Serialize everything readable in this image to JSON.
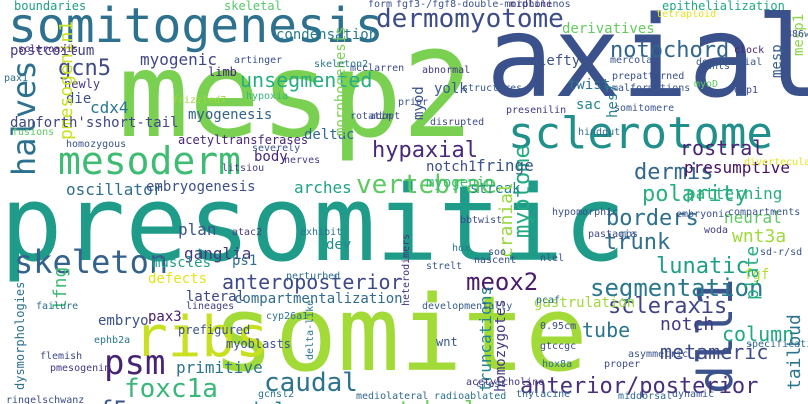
{
  "words": [
    {
      "text": "presomitic",
      "color": "#1e9c89"
    },
    {
      "text": "somite",
      "color": "#a2da37"
    },
    {
      "text": "mesp2",
      "color": "#7ad151"
    },
    {
      "text": "axial",
      "color": "#3b518b"
    },
    {
      "text": "sclerotome",
      "color": "#21908d"
    },
    {
      "text": "somitogenesis",
      "color": "#2d718e"
    },
    {
      "text": "mesoderm",
      "color": "#3fbc73"
    },
    {
      "text": "ribs",
      "color": "#c8e020"
    },
    {
      "text": "dermomyotome",
      "color": "#3d4d8a"
    },
    {
      "text": "skeleton",
      "color": "#33628d"
    },
    {
      "text": "halves",
      "color": "#2c728e"
    },
    {
      "text": "vertebrae",
      "color": "#5ec962"
    },
    {
      "text": "caudal",
      "color": "#2c738e"
    },
    {
      "text": "dll1",
      "color": "#3b528b"
    },
    {
      "text": "psm",
      "color": "#482374"
    },
    {
      "text": "foxc1a",
      "color": "#37b878"
    },
    {
      "text": "vertebral",
      "color": "#6ccd5a"
    },
    {
      "text": "segmentation",
      "color": "#2a788e"
    },
    {
      "text": "meox2",
      "color": "#481b6d"
    },
    {
      "text": "notochord",
      "color": "#32658e"
    },
    {
      "text": "unsegmented",
      "color": "#26ad81"
    },
    {
      "text": "hypaxial",
      "color": "#482979"
    },
    {
      "text": "dermis",
      "color": "#31668e"
    },
    {
      "text": "polarity",
      "color": "#2ab07f"
    },
    {
      "text": "borders",
      "color": "#2d708e"
    },
    {
      "text": "anteroposterior",
      "color": "#3e4989"
    },
    {
      "text": "anterior/posterior",
      "color": "#472f7d"
    },
    {
      "text": "myotome",
      "color": "#25ab82"
    },
    {
      "text": "trunk",
      "color": "#2e6f8e"
    },
    {
      "text": "lunatic",
      "color": "#1f9e89"
    },
    {
      "text": "scleraxis",
      "color": "#414487"
    },
    {
      "text": "column",
      "color": "#22a884"
    },
    {
      "text": "metameric",
      "color": "#3e4c8a"
    },
    {
      "text": "notch",
      "color": "#443a83"
    },
    {
      "text": "epaxial",
      "color": "#23898e"
    },
    {
      "text": "myf5",
      "color": "#3a548c"
    },
    {
      "text": "tube",
      "color": "#2a768e"
    },
    {
      "text": "plan",
      "color": "#3a538b"
    },
    {
      "text": "gcn5",
      "color": "#3e4a89"
    },
    {
      "text": "myogenic",
      "color": "#404688"
    },
    {
      "text": "rostral",
      "color": "#482475"
    },
    {
      "text": "primitive",
      "color": "#2b748e"
    },
    {
      "text": "postcoitum",
      "color": "#433e85"
    },
    {
      "text": "boundaries",
      "color": "#1fa088"
    },
    {
      "text": "condensation",
      "color": "#287c8e"
    },
    {
      "text": "skeletal",
      "color": "#56c667"
    },
    {
      "text": "epithelialization",
      "color": "#22a785"
    },
    {
      "text": "derivatives",
      "color": "#65cb5e"
    },
    {
      "text": "lefty",
      "color": "#3b528b"
    },
    {
      "text": "cdx4",
      "color": "#2a768e"
    },
    {
      "text": "myogenesis",
      "color": "#33638d"
    },
    {
      "text": "oscillator",
      "color": "#2e6e8e"
    },
    {
      "text": "embryogenesis",
      "color": "#3b518b"
    },
    {
      "text": "arches",
      "color": "#1fa188"
    },
    {
      "text": "fringe",
      "color": "#39558c"
    },
    {
      "text": "streak",
      "color": "#24868e"
    },
    {
      "text": "presumptive",
      "color": "#471164"
    },
    {
      "text": "patterning",
      "color": "#29af7f"
    },
    {
      "text": "neural",
      "color": "#5ec962"
    },
    {
      "text": "wnt3a",
      "color": "#9fda3a"
    },
    {
      "text": "fgf",
      "color": "#b5de2b"
    },
    {
      "text": "pax3",
      "color": "#481b6d"
    },
    {
      "text": "lateral",
      "color": "#3f4788"
    },
    {
      "text": "compartmentalization",
      "color": "#2f6c8e"
    },
    {
      "text": "embryo",
      "color": "#3b518b"
    },
    {
      "text": "ganglia",
      "color": "#453882"
    },
    {
      "text": "muscles",
      "color": "#1f9e89"
    },
    {
      "text": "defects",
      "color": "#e5e419"
    },
    {
      "text": "ps1",
      "color": "#2d708e"
    },
    {
      "text": "dev",
      "color": "#228d8d"
    },
    {
      "text": "body",
      "color": "#482878"
    },
    {
      "text": "deltac",
      "color": "#31688e"
    },
    {
      "text": "notch1",
      "color": "#3d4e8a"
    },
    {
      "text": "myod",
      "color": "#3b518b"
    },
    {
      "text": "myogenin",
      "color": "#3ebc74"
    },
    {
      "text": "twist",
      "color": "#2a768e"
    },
    {
      "text": "sac",
      "color": "#25858e"
    },
    {
      "text": "hes7",
      "color": "#25838e"
    },
    {
      "text": "die",
      "color": "#3b528b"
    },
    {
      "text": "newly",
      "color": "#443b84"
    },
    {
      "text": "pmesogenin1",
      "color": "#cae11f"
    },
    {
      "text": "lfng",
      "color": "#3dbc74"
    },
    {
      "text": "danforth'sshort-tail",
      "color": "#404688"
    },
    {
      "text": "acetyltransferases",
      "color": "#482575"
    },
    {
      "text": "cranial",
      "color": "#98d83e"
    },
    {
      "text": "plate",
      "color": "#25ac82"
    },
    {
      "text": "homozygotes",
      "color": "#453781"
    },
    {
      "text": "truncations",
      "color": "#25848e"
    },
    {
      "text": "tailbud",
      "color": "#2b758e"
    },
    {
      "text": "morphogenesis",
      "color": "#7ad151"
    },
    {
      "text": "yolk",
      "color": "#38598c"
    },
    {
      "text": "limb",
      "color": "#482374"
    },
    {
      "text": "mesp",
      "color": "#365d8d"
    },
    {
      "text": "mesp1",
      "color": "#8bd646"
    },
    {
      "text": "wnt",
      "color": "#39568c"
    },
    {
      "text": "gastrulation",
      "color": "#9dd93b"
    },
    {
      "text": "dysmorphologies",
      "color": "#2c718e"
    },
    {
      "text": "myoblasts",
      "color": "#3b518b"
    },
    {
      "text": "delta-like",
      "color": "#2a788e"
    },
    {
      "text": "crest",
      "color": "#3b518b"
    },
    {
      "text": "gcnsl2",
      "color": "#2c728e"
    },
    {
      "text": "mediolateral",
      "color": "#31678e"
    },
    {
      "text": "radioablated",
      "color": "#2c718e"
    },
    {
      "text": "middorsal",
      "color": "#2f6c8e"
    },
    {
      "text": "dynamic",
      "color": "#39568c"
    },
    {
      "text": "ringelschwanz",
      "color": "#3d4e8a"
    },
    {
      "text": "pmesogenin",
      "color": "#453882"
    },
    {
      "text": "flemish",
      "color": "#3f4889"
    },
    {
      "text": "ephb2a",
      "color": "#2b758e"
    },
    {
      "text": "failure",
      "color": "#2e6e8e"
    },
    {
      "text": "prefigured",
      "color": "#3b528b"
    },
    {
      "text": "lineages",
      "color": "#424086"
    },
    {
      "text": "perturbed",
      "color": "#2d708e"
    },
    {
      "text": "atac2",
      "color": "#433d84"
    },
    {
      "text": "nascent",
      "color": "#3b518b"
    },
    {
      "text": "proper",
      "color": "#3e4a89"
    },
    {
      "text": "asymmetric",
      "color": "#3b518b"
    },
    {
      "text": "developmentally",
      "color": "#38598c"
    },
    {
      "text": "heterodimers",
      "color": "#46327e"
    },
    {
      "text": "hox",
      "color": "#2a768e"
    },
    {
      "text": "pcaf",
      "color": "#31688e"
    },
    {
      "text": "homozygous",
      "color": "#3b528b"
    },
    {
      "text": "scleroaxis",
      "color": "#482475"
    },
    {
      "text": "mcclarren",
      "color": "#3e4c8a"
    },
    {
      "text": "artinger",
      "color": "#3b518b"
    },
    {
      "text": "hypoxia",
      "color": "#35b779"
    },
    {
      "text": "frizzled7",
      "color": "#9fda3a"
    },
    {
      "text": "skeleton2",
      "color": "#2a768e"
    },
    {
      "text": "mercola",
      "color": "#3b528b"
    },
    {
      "text": "dorsomedial",
      "color": "#38598c"
    },
    {
      "text": "myoD",
      "color": "#5ec962"
    },
    {
      "text": "eip1",
      "color": "#3e4c8a"
    },
    {
      "text": "clock",
      "color": "#482576"
    },
    {
      "text": "wnts",
      "color": "#38598c"
    },
    {
      "text": "presenilin",
      "color": "#453882"
    },
    {
      "text": "hindgut",
      "color": "#2e6e8e"
    },
    {
      "text": "divertecula",
      "color": "#e5e419"
    },
    {
      "text": "woda",
      "color": "#433e85"
    },
    {
      "text": "compartments",
      "color": "#39568c"
    },
    {
      "text": "sd-r/sd",
      "color": "#3b518b"
    },
    {
      "text": "embryonic",
      "color": "#3b528b"
    },
    {
      "text": "specification",
      "color": "#31688e"
    },
    {
      "text": "fusions",
      "color": "#5ec962"
    },
    {
      "text": "rotatin",
      "color": "#3b518b"
    },
    {
      "text": "adopt",
      "color": "#3e4c8a"
    },
    {
      "text": "nerves",
      "color": "#443b84"
    },
    {
      "text": "severely",
      "color": "#3b528b"
    },
    {
      "text": "litsiou",
      "color": "#433d84"
    },
    {
      "text": "exhibit",
      "color": "#2d708e"
    },
    {
      "text": "hypomorphic",
      "color": "#3b518b"
    },
    {
      "text": "pastagia",
      "color": "#3e4a89"
    },
    {
      "text": "mos",
      "color": "#31688e"
    },
    {
      "text": "soo",
      "color": "#3b528b"
    },
    {
      "text": "structures",
      "color": "#38598c"
    },
    {
      "text": "prior",
      "color": "#3b518b"
    },
    {
      "text": "abnormal",
      "color": "#453882"
    },
    {
      "text": "disrupted",
      "color": "#3e4c8a"
    },
    {
      "text": "malformations",
      "color": "#39568c"
    },
    {
      "text": "prepatterned",
      "color": "#3b518b"
    },
    {
      "text": "pax1",
      "color": "#2e6e8e"
    },
    {
      "text": "r886w",
      "color": "#3b528b"
    },
    {
      "text": "somitomere",
      "color": "#39568c"
    },
    {
      "text": "form",
      "color": "#3b518b"
    },
    {
      "text": "midline",
      "color": "#482475"
    },
    {
      "text": "tetraploid",
      "color": "#e5e419"
    },
    {
      "text": "fgf3-/fgf8-double-morpholinos",
      "color": "#3b518b"
    },
    {
      "text": "bbtwist",
      "color": "#3e4c8a"
    },
    {
      "text": "strelt",
      "color": "#38598c"
    },
    {
      "text": "nlel",
      "color": "#3b528b"
    },
    {
      "text": "0.95cm",
      "color": "#3b518b"
    },
    {
      "text": "gtccgc",
      "color": "#3e4a89"
    },
    {
      "text": "hox8a",
      "color": "#2d708e"
    },
    {
      "text": "cyp26a1",
      "color": "#2c718e"
    },
    {
      "text": "thylacine",
      "color": "#31688e"
    },
    {
      "text": "acetylcholine",
      "color": "#453882"
    }
  ]
}
